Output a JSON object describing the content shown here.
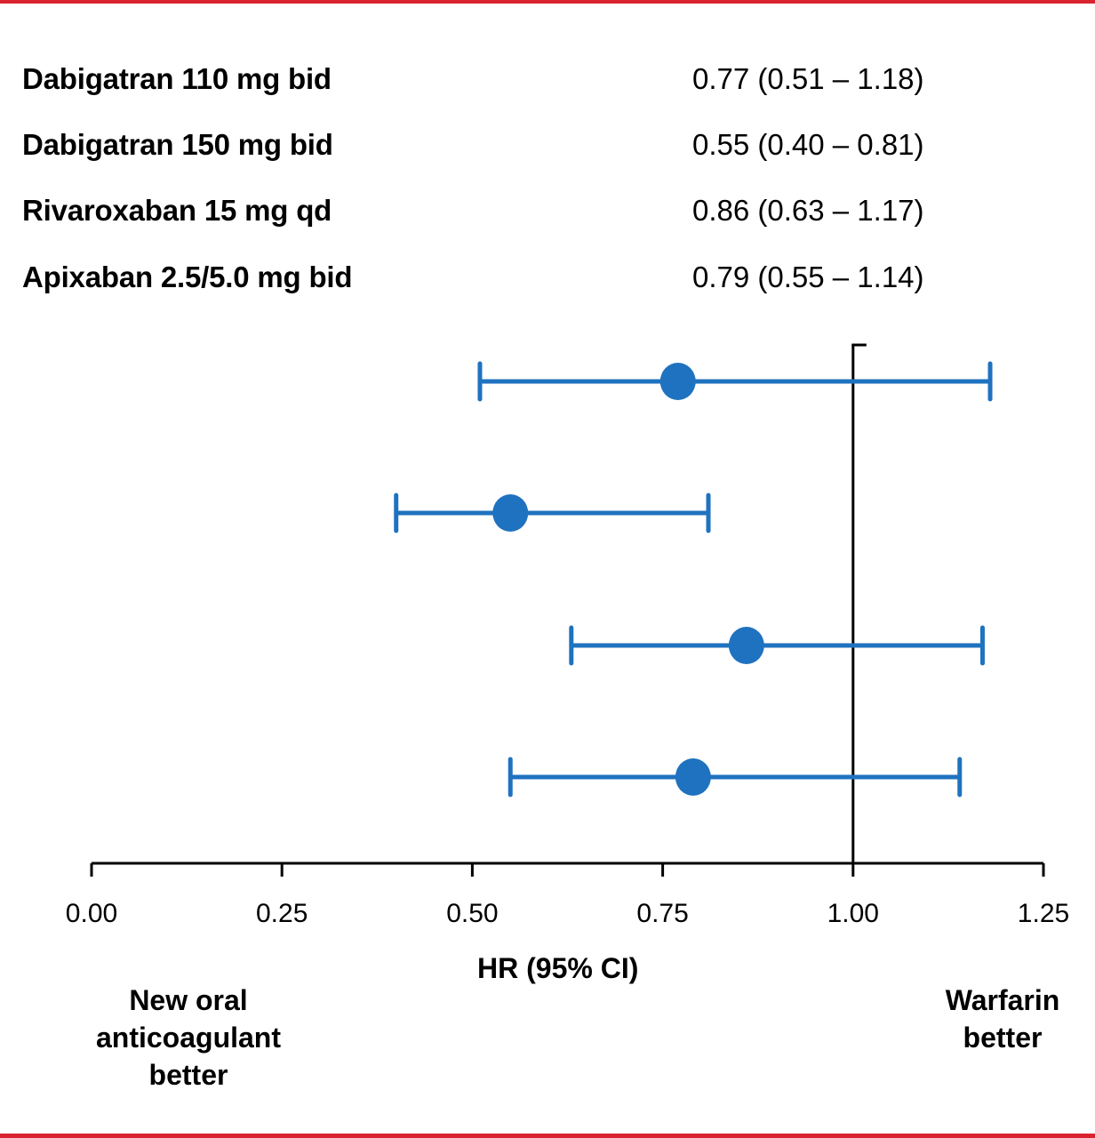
{
  "colors": {
    "frame": "#d9232e",
    "marker": "#1f72bf",
    "axis": "#000000"
  },
  "chart_data": {
    "type": "scatter",
    "subtype": "forest-plot",
    "title": "",
    "xlabel": "HR (95% CI)",
    "ylabel": "",
    "xlim": [
      0.0,
      1.25
    ],
    "xticks": [
      0.0,
      0.25,
      0.5,
      0.75,
      1.0,
      1.25
    ],
    "xtick_labels": [
      "0.00",
      "0.25",
      "0.50",
      "0.75",
      "1.00",
      "1.25"
    ],
    "reference_line": 1.0,
    "grid": false,
    "rows": [
      {
        "label": "Dabigatran 110 mg bid",
        "hr": 0.77,
        "ci_low": 0.51,
        "ci_high": 1.18,
        "text": "0.77 (0.51 – 1.18)"
      },
      {
        "label": "Dabigatran 150 mg bid",
        "hr": 0.55,
        "ci_low": 0.4,
        "ci_high": 0.81,
        "text": "0.55 (0.40 – 0.81)"
      },
      {
        "label": "Rivaroxaban 15 mg qd",
        "hr": 0.86,
        "ci_low": 0.63,
        "ci_high": 1.17,
        "text": "0.86 (0.63 – 1.17)"
      },
      {
        "label": "Apixaban 2.5/5.0 mg bid",
        "hr": 0.79,
        "ci_low": 0.55,
        "ci_high": 1.14,
        "text": "0.79 (0.55 – 1.14)"
      }
    ],
    "annotations": {
      "left": "New oral anticoagulant better",
      "right": "Warfarin better"
    }
  },
  "labels": {
    "left_lines": [
      "New oral",
      "anticoagulant",
      "better"
    ],
    "right_lines": [
      "Warfarin",
      "better"
    ]
  }
}
